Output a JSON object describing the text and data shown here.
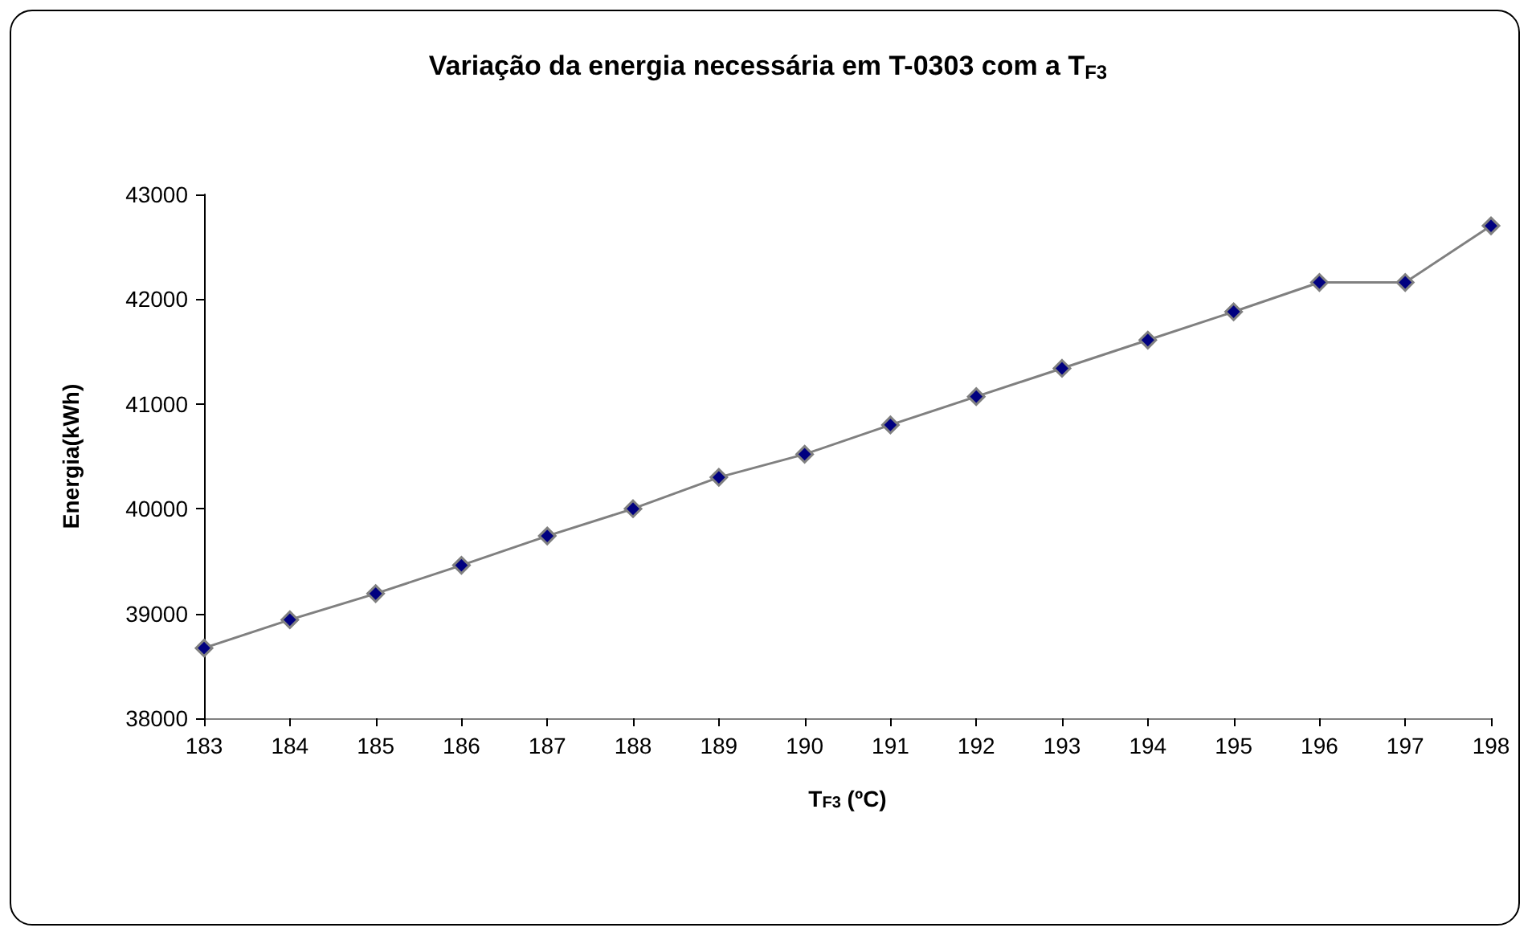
{
  "chart_data": {
    "type": "line",
    "title": "Variação da energia necessária em T-0303 com a T$_{F3}$",
    "xlabel": "T$_{F3}$ (ºC)",
    "ylabel": "Energia(kWh)",
    "x": [
      183,
      184,
      185,
      186,
      187,
      188,
      189,
      190,
      191,
      192,
      193,
      194,
      195,
      196,
      197,
      198
    ],
    "series": [
      {
        "color": "#000080",
        "values": [
          38670,
          38940,
          39190,
          39460,
          39740,
          40000,
          40300,
          40520,
          40800,
          41070,
          41340,
          41610,
          41880,
          42160,
          42160,
          42700
        ]
      }
    ],
    "xlim": [
      183,
      198
    ],
    "xticks": [
      183,
      184,
      185,
      186,
      187,
      188,
      189,
      190,
      191,
      192,
      193,
      194,
      195,
      196,
      197,
      198
    ],
    "ylim": [
      38000,
      43000
    ],
    "yticks": [
      38000,
      39000,
      40000,
      41000,
      42000,
      43000
    ],
    "grid": false,
    "marker": "diamond",
    "line_style": "solid"
  }
}
